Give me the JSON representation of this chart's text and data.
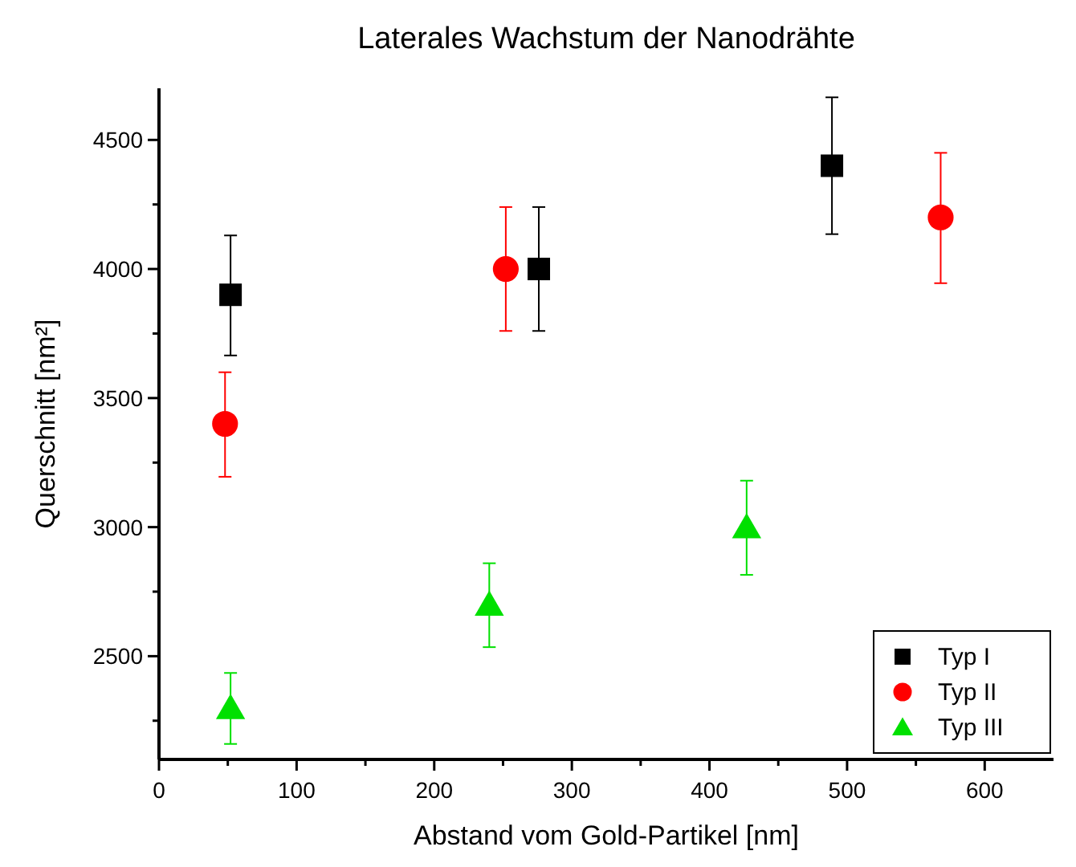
{
  "chart_data": {
    "type": "scatter",
    "title": "Laterales Wachstum der Nanodrähte",
    "xlabel": "Abstand vom Gold-Partikel [nm]",
    "ylabel": "Querschnitt [nm²]",
    "xlim": [
      0,
      650
    ],
    "xticks": [
      0,
      {
        "value": 50,
        "label": null
      },
      100,
      {
        "value": 150,
        "label": null
      },
      200,
      {
        "value": 250,
        "label": null
      },
      300,
      {
        "value": 350,
        "label": null
      },
      400,
      {
        "value": 450,
        "label": null
      },
      500,
      {
        "value": 550,
        "label": null
      },
      600
    ],
    "ylim": [
      2100,
      4700
    ],
    "yticks": [
      {
        "value": 2250,
        "label": null
      },
      2500,
      {
        "value": 2750,
        "label": null
      },
      3000,
      {
        "value": 3250,
        "label": null
      },
      3500,
      {
        "value": 3750,
        "label": null
      },
      4000,
      {
        "value": 4250,
        "label": null
      },
      4500
    ],
    "grid": false,
    "legend": "bottom right",
    "series": [
      {
        "name": "Typ I",
        "color": "#000000",
        "marker": "square",
        "x": [
          52,
          276,
          489
        ],
        "values": [
          3900,
          4000,
          4400
        ],
        "errors": [
          [
            3665,
            4130
          ],
          [
            3760,
            4240
          ],
          [
            4135,
            4665
          ]
        ]
      },
      {
        "name": "Typ II",
        "color": "#ff0000",
        "marker": "circle",
        "x": [
          48,
          252,
          568
        ],
        "values": [
          3400,
          4000,
          4200
        ],
        "errors": [
          [
            3195,
            3600
          ],
          [
            3760,
            4240
          ],
          [
            3945,
            4450
          ]
        ]
      },
      {
        "name": "Typ III",
        "color": "#00e000",
        "marker": "triangle",
        "x": [
          52,
          240,
          427
        ],
        "values": [
          2300,
          2700,
          3000
        ],
        "errors": [
          [
            2160,
            2435
          ],
          [
            2535,
            2860
          ],
          [
            2815,
            3180
          ]
        ]
      }
    ]
  }
}
